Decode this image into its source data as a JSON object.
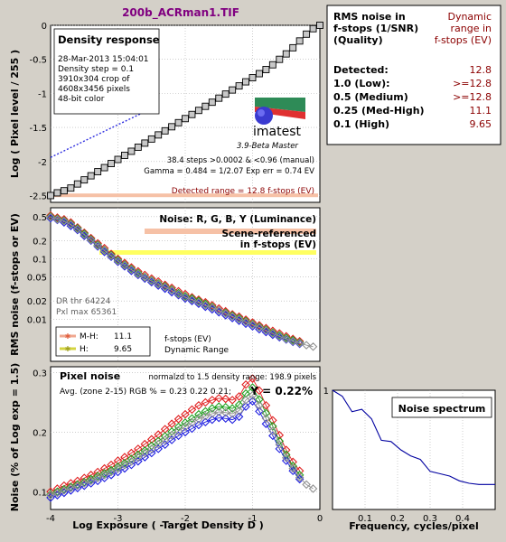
{
  "title": "200b_ACRman1.TIF",
  "density": {
    "box_title": "Density response",
    "info": [
      "28-Mar-2013 15:04:01",
      "Density step = 0.1",
      "3910x304 crop of",
      "4608x3456 pixels",
      "48-bit color"
    ],
    "steps_text": "38.4 steps >0.0002 & <0.96 (manual)",
    "gamma_text": "Gamma = 0.484 = 1/2.07  Exp err = 0.74 EV",
    "detected_text": "Detected range = 12.8 f-stops (EV)",
    "ylabel": "Log ( Pixel level / 255 )",
    "logo": "imatest",
    "logo_sub": "3.9-Beta  Master"
  },
  "noise_fstops": {
    "title": "Noise: R, G, B, Y (Luminance)",
    "scene_label_1": "Scene-referenced",
    "scene_label_2": "in f-stops (EV)",
    "ylabel": "RMS noise (f-stops or EV)",
    "dr_thr": "DR thr 64224",
    "pxl_max": "Pxl max 65361",
    "legend": [
      {
        "label": "M-H:",
        "value": "11.1",
        "color": "#f0a890"
      },
      {
        "label": "H:",
        "value": "9.65",
        "color": "#d4d440"
      }
    ],
    "legend_note_1": "f-stops (EV)",
    "legend_note_2": "Dynamic Range"
  },
  "pixel_noise": {
    "title": "Pixel noise",
    "norm_text": "normalzd to 1.5 density range: 198.9 pixels",
    "avg_text": "Avg. (zone 2-15) RGB % = 0.23  0.22  0.21;",
    "y_text": "Y = 0.22%",
    "ylabel": "Noise (% of Log exp = 1.5)",
    "xlabel": "Log Exposure ( -Target Density D )"
  },
  "spectrum": {
    "title": "Noise spectrum",
    "xlabel": "Frequency, cycles/pixel"
  },
  "table": {
    "header_left_1": "RMS noise in",
    "header_left_2": "f-stops (1/SNR)",
    "header_left_3": "(Quality)",
    "header_right_1": "Dynamic",
    "header_right_2": "range in",
    "header_right_3": "f-stops (EV)",
    "rows": [
      {
        "label": "Detected:",
        "value": "12.8"
      },
      {
        "label": "1.0  (Low):",
        "value": ">=12.8"
      },
      {
        "label": "0.5  (Medium)",
        "value": ">=12.8"
      },
      {
        "label": "0.25 (Med-High)",
        "value": "11.1"
      },
      {
        "label": "0.1   (High)",
        "value": "9.65"
      }
    ]
  },
  "colors": {
    "red": "#e02020",
    "green": "#20a020",
    "blue": "#2020e0",
    "gray": "#909090",
    "title": "#800080",
    "value": "#8b0000"
  },
  "chart_data": [
    {
      "type": "line",
      "name": "Density response",
      "xlim": [
        -4,
        0
      ],
      "ylim": [
        -2.6,
        0
      ],
      "xticks": [],
      "yticks": [
        0,
        -0.5,
        -1,
        -1.5,
        -2,
        -2.5
      ],
      "series": [
        {
          "name": "density",
          "x": [
            -4.0,
            -3.9,
            -3.8,
            -3.7,
            -3.6,
            -3.5,
            -3.4,
            -3.3,
            -3.2,
            -3.1,
            -3.0,
            -2.9,
            -2.8,
            -2.7,
            -2.6,
            -2.5,
            -2.4,
            -2.3,
            -2.2,
            -2.1,
            -2.0,
            -1.9,
            -1.8,
            -1.7,
            -1.6,
            -1.5,
            -1.4,
            -1.3,
            -1.2,
            -1.1,
            -1.0,
            -0.9,
            -0.8,
            -0.7,
            -0.6,
            -0.5,
            -0.4,
            -0.3,
            -0.2,
            -0.1,
            0.0
          ],
          "y": [
            -2.5,
            -2.46,
            -2.43,
            -2.39,
            -2.33,
            -2.27,
            -2.21,
            -2.15,
            -2.09,
            -2.03,
            -1.97,
            -1.91,
            -1.85,
            -1.79,
            -1.73,
            -1.67,
            -1.61,
            -1.55,
            -1.49,
            -1.43,
            -1.37,
            -1.31,
            -1.25,
            -1.19,
            -1.13,
            -1.07,
            -1.01,
            -0.95,
            -0.89,
            -0.83,
            -0.77,
            -0.71,
            -0.65,
            -0.58,
            -0.5,
            -0.42,
            -0.33,
            -0.23,
            -0.13,
            -0.05,
            0.0
          ]
        },
        {
          "name": "gamma fit",
          "x": [
            -4.0,
            -2.5
          ],
          "y": [
            -1.94,
            -1.22
          ]
        }
      ]
    },
    {
      "type": "line",
      "name": "RMS noise f-stops",
      "xlim": [
        -4,
        0
      ],
      "ylog": true,
      "ylim": [
        0.002,
        0.7
      ],
      "yticks": [
        0.5,
        0.2,
        0.1,
        0.05,
        0.02,
        0.01
      ],
      "ytick_labels": [
        "0.5",
        "0.2",
        "0.1",
        "0.05",
        "0.02",
        "0.01"
      ],
      "series": [
        {
          "name": "R",
          "x": [
            -4.0,
            -3.9,
            -3.8,
            -3.7,
            -3.6,
            -3.5,
            -3.4,
            -3.3,
            -3.2,
            -3.1,
            -3.0,
            -2.9,
            -2.8,
            -2.7,
            -2.6,
            -2.5,
            -2.4,
            -2.3,
            -2.2,
            -2.1,
            -2.0,
            -1.9,
            -1.8,
            -1.7,
            -1.6,
            -1.5,
            -1.4,
            -1.3,
            -1.2,
            -1.1,
            -1.0,
            -0.9,
            -0.8,
            -0.7,
            -0.6,
            -0.5,
            -0.4,
            -0.3
          ],
          "y": [
            0.52,
            0.48,
            0.45,
            0.4,
            0.33,
            0.27,
            0.22,
            0.18,
            0.15,
            0.12,
            0.1,
            0.085,
            0.072,
            0.062,
            0.054,
            0.047,
            0.042,
            0.037,
            0.033,
            0.029,
            0.026,
            0.023,
            0.021,
            0.019,
            0.017,
            0.015,
            0.0135,
            0.012,
            0.011,
            0.0098,
            0.0088,
            0.0079,
            0.0071,
            0.0064,
            0.0058,
            0.0052,
            0.0047,
            0.0043
          ]
        },
        {
          "name": "G",
          "x": [
            -4.0,
            -3.9,
            -3.8,
            -3.7,
            -3.6,
            -3.5,
            -3.4,
            -3.3,
            -3.2,
            -3.1,
            -3.0,
            -2.9,
            -2.8,
            -2.7,
            -2.6,
            -2.5,
            -2.4,
            -2.3,
            -2.2,
            -2.1,
            -2.0,
            -1.9,
            -1.8,
            -1.7,
            -1.6,
            -1.5,
            -1.4,
            -1.3,
            -1.2,
            -1.1,
            -1.0,
            -0.9,
            -0.8,
            -0.7,
            -0.6,
            -0.5,
            -0.4,
            -0.3
          ],
          "y": [
            0.5,
            0.46,
            0.43,
            0.38,
            0.32,
            0.26,
            0.21,
            0.17,
            0.14,
            0.115,
            0.095,
            0.08,
            0.068,
            0.058,
            0.05,
            0.044,
            0.039,
            0.035,
            0.031,
            0.027,
            0.024,
            0.022,
            0.02,
            0.018,
            0.016,
            0.014,
            0.0128,
            0.0115,
            0.0104,
            0.0093,
            0.0083,
            0.0075,
            0.0067,
            0.006,
            0.0054,
            0.0049,
            0.0045,
            0.0041
          ]
        },
        {
          "name": "B",
          "x": [
            -4.0,
            -3.9,
            -3.8,
            -3.7,
            -3.6,
            -3.5,
            -3.4,
            -3.3,
            -3.2,
            -3.1,
            -3.0,
            -2.9,
            -2.8,
            -2.7,
            -2.6,
            -2.5,
            -2.4,
            -2.3,
            -2.2,
            -2.1,
            -2.0,
            -1.9,
            -1.8,
            -1.7,
            -1.6,
            -1.5,
            -1.4,
            -1.3,
            -1.2,
            -1.1,
            -1.0,
            -0.9,
            -0.8,
            -0.7,
            -0.6,
            -0.5,
            -0.4,
            -0.3
          ],
          "y": [
            0.47,
            0.44,
            0.4,
            0.35,
            0.3,
            0.24,
            0.2,
            0.16,
            0.13,
            0.108,
            0.089,
            0.075,
            0.063,
            0.054,
            0.047,
            0.041,
            0.036,
            0.032,
            0.028,
            0.025,
            0.022,
            0.02,
            0.018,
            0.016,
            0.0145,
            0.013,
            0.0116,
            0.0104,
            0.0094,
            0.0084,
            0.0076,
            0.0068,
            0.0061,
            0.0055,
            0.005,
            0.0046,
            0.0042,
            0.0039
          ]
        },
        {
          "name": "Y",
          "x": [
            -4.0,
            -3.9,
            -3.8,
            -3.7,
            -3.6,
            -3.5,
            -3.4,
            -3.3,
            -3.2,
            -3.1,
            -3.0,
            -2.9,
            -2.8,
            -2.7,
            -2.6,
            -2.5,
            -2.4,
            -2.3,
            -2.2,
            -2.1,
            -2.0,
            -1.9,
            -1.8,
            -1.7,
            -1.6,
            -1.5,
            -1.4,
            -1.3,
            -1.2,
            -1.1,
            -1.0,
            -0.9,
            -0.8,
            -0.7,
            -0.6,
            -0.5,
            -0.4,
            -0.3,
            -0.2,
            -0.1
          ],
          "y": [
            0.49,
            0.45,
            0.42,
            0.37,
            0.31,
            0.25,
            0.205,
            0.165,
            0.137,
            0.112,
            0.092,
            0.078,
            0.066,
            0.056,
            0.049,
            0.043,
            0.038,
            0.034,
            0.03,
            0.026,
            0.023,
            0.021,
            0.019,
            0.017,
            0.0155,
            0.014,
            0.0124,
            0.0111,
            0.01,
            0.009,
            0.0081,
            0.0073,
            0.0065,
            0.0058,
            0.0052,
            0.0047,
            0.0043,
            0.004,
            0.0037,
            0.0035
          ]
        }
      ]
    },
    {
      "type": "line",
      "name": "Pixel noise",
      "xlim": [
        -4,
        0
      ],
      "ylim": [
        0.07,
        0.31
      ],
      "xticks": [
        -4,
        -3,
        -2,
        -1,
        0
      ],
      "yticks": [
        0.1,
        0.2,
        0.3
      ],
      "series": [
        {
          "name": "R",
          "x": [
            -4.0,
            -3.9,
            -3.8,
            -3.7,
            -3.6,
            -3.5,
            -3.4,
            -3.3,
            -3.2,
            -3.1,
            -3.0,
            -2.9,
            -2.8,
            -2.7,
            -2.6,
            -2.5,
            -2.4,
            -2.3,
            -2.2,
            -2.1,
            -2.0,
            -1.9,
            -1.8,
            -1.7,
            -1.6,
            -1.5,
            -1.4,
            -1.3,
            -1.2,
            -1.1,
            -1.0,
            -0.9,
            -0.8,
            -0.7,
            -0.6,
            -0.5,
            -0.4,
            -0.3
          ],
          "y": [
            0.1,
            0.105,
            0.11,
            0.114,
            0.118,
            0.123,
            0.128,
            0.133,
            0.139,
            0.145,
            0.152,
            0.158,
            0.165,
            0.172,
            0.18,
            0.188,
            0.196,
            0.205,
            0.214,
            0.222,
            0.23,
            0.238,
            0.245,
            0.25,
            0.254,
            0.257,
            0.256,
            0.254,
            0.26,
            0.28,
            0.29,
            0.27,
            0.245,
            0.22,
            0.195,
            0.17,
            0.15,
            0.135
          ]
        },
        {
          "name": "G",
          "x": [
            -4.0,
            -3.9,
            -3.8,
            -3.7,
            -3.6,
            -3.5,
            -3.4,
            -3.3,
            -3.2,
            -3.1,
            -3.0,
            -2.9,
            -2.8,
            -2.7,
            -2.6,
            -2.5,
            -2.4,
            -2.3,
            -2.2,
            -2.1,
            -2.0,
            -1.9,
            -1.8,
            -1.7,
            -1.6,
            -1.5,
            -1.4,
            -1.3,
            -1.2,
            -1.1,
            -1.0,
            -0.9,
            -0.8,
            -0.7,
            -0.6,
            -0.5,
            -0.4,
            -0.3
          ],
          "y": [
            0.095,
            0.1,
            0.104,
            0.108,
            0.112,
            0.116,
            0.121,
            0.126,
            0.131,
            0.136,
            0.142,
            0.148,
            0.155,
            0.162,
            0.169,
            0.177,
            0.185,
            0.193,
            0.201,
            0.209,
            0.216,
            0.223,
            0.23,
            0.235,
            0.24,
            0.243,
            0.242,
            0.24,
            0.246,
            0.265,
            0.275,
            0.255,
            0.232,
            0.21,
            0.185,
            0.162,
            0.143,
            0.128
          ]
        },
        {
          "name": "B",
          "x": [
            -4.0,
            -3.9,
            -3.8,
            -3.7,
            -3.6,
            -3.5,
            -3.4,
            -3.3,
            -3.2,
            -3.1,
            -3.0,
            -2.9,
            -2.8,
            -2.7,
            -2.6,
            -2.5,
            -2.4,
            -2.3,
            -2.2,
            -2.1,
            -2.0,
            -1.9,
            -1.8,
            -1.7,
            -1.6,
            -1.5,
            -1.4,
            -1.3,
            -1.2,
            -1.1,
            -1.0,
            -0.9,
            -0.8,
            -0.7,
            -0.6,
            -0.5,
            -0.4,
            -0.3
          ],
          "y": [
            0.09,
            0.094,
            0.098,
            0.102,
            0.106,
            0.11,
            0.114,
            0.118,
            0.123,
            0.128,
            0.133,
            0.139,
            0.145,
            0.151,
            0.158,
            0.165,
            0.172,
            0.179,
            0.187,
            0.194,
            0.2,
            0.206,
            0.212,
            0.217,
            0.221,
            0.224,
            0.223,
            0.221,
            0.226,
            0.243,
            0.252,
            0.235,
            0.214,
            0.194,
            0.172,
            0.152,
            0.135,
            0.121
          ]
        },
        {
          "name": "Y",
          "x": [
            -4.0,
            -3.9,
            -3.8,
            -3.7,
            -3.6,
            -3.5,
            -3.4,
            -3.3,
            -3.2,
            -3.1,
            -3.0,
            -2.9,
            -2.8,
            -2.7,
            -2.6,
            -2.5,
            -2.4,
            -2.3,
            -2.2,
            -2.1,
            -2.0,
            -1.9,
            -1.8,
            -1.7,
            -1.6,
            -1.5,
            -1.4,
            -1.3,
            -1.2,
            -1.1,
            -1.0,
            -0.9,
            -0.8,
            -0.7,
            -0.6,
            -0.5,
            -0.4,
            -0.3,
            -0.2,
            -0.1
          ],
          "y": [
            0.094,
            0.098,
            0.102,
            0.106,
            0.11,
            0.114,
            0.118,
            0.123,
            0.128,
            0.133,
            0.139,
            0.145,
            0.151,
            0.158,
            0.165,
            0.172,
            0.18,
            0.187,
            0.195,
            0.202,
            0.209,
            0.216,
            0.222,
            0.227,
            0.231,
            0.234,
            0.233,
            0.231,
            0.236,
            0.254,
            0.262,
            0.245,
            0.223,
            0.202,
            0.179,
            0.157,
            0.139,
            0.124,
            0.112,
            0.105
          ]
        }
      ]
    },
    {
      "type": "line",
      "name": "Noise spectrum",
      "xlim": [
        0,
        0.5
      ],
      "ylim": [
        0,
        1
      ],
      "xticks": [
        0.1,
        0.2,
        0.3,
        0.4
      ],
      "yticks": [
        1
      ],
      "series": [
        {
          "name": "spectrum",
          "x": [
            0,
            0.03,
            0.06,
            0.09,
            0.12,
            0.15,
            0.18,
            0.21,
            0.24,
            0.27,
            0.3,
            0.33,
            0.36,
            0.39,
            0.42,
            0.45,
            0.48,
            0.5
          ],
          "y": [
            1.0,
            0.95,
            0.82,
            0.84,
            0.76,
            0.58,
            0.57,
            0.5,
            0.45,
            0.42,
            0.32,
            0.3,
            0.28,
            0.24,
            0.22,
            0.21,
            0.21,
            0.21
          ]
        }
      ]
    }
  ]
}
